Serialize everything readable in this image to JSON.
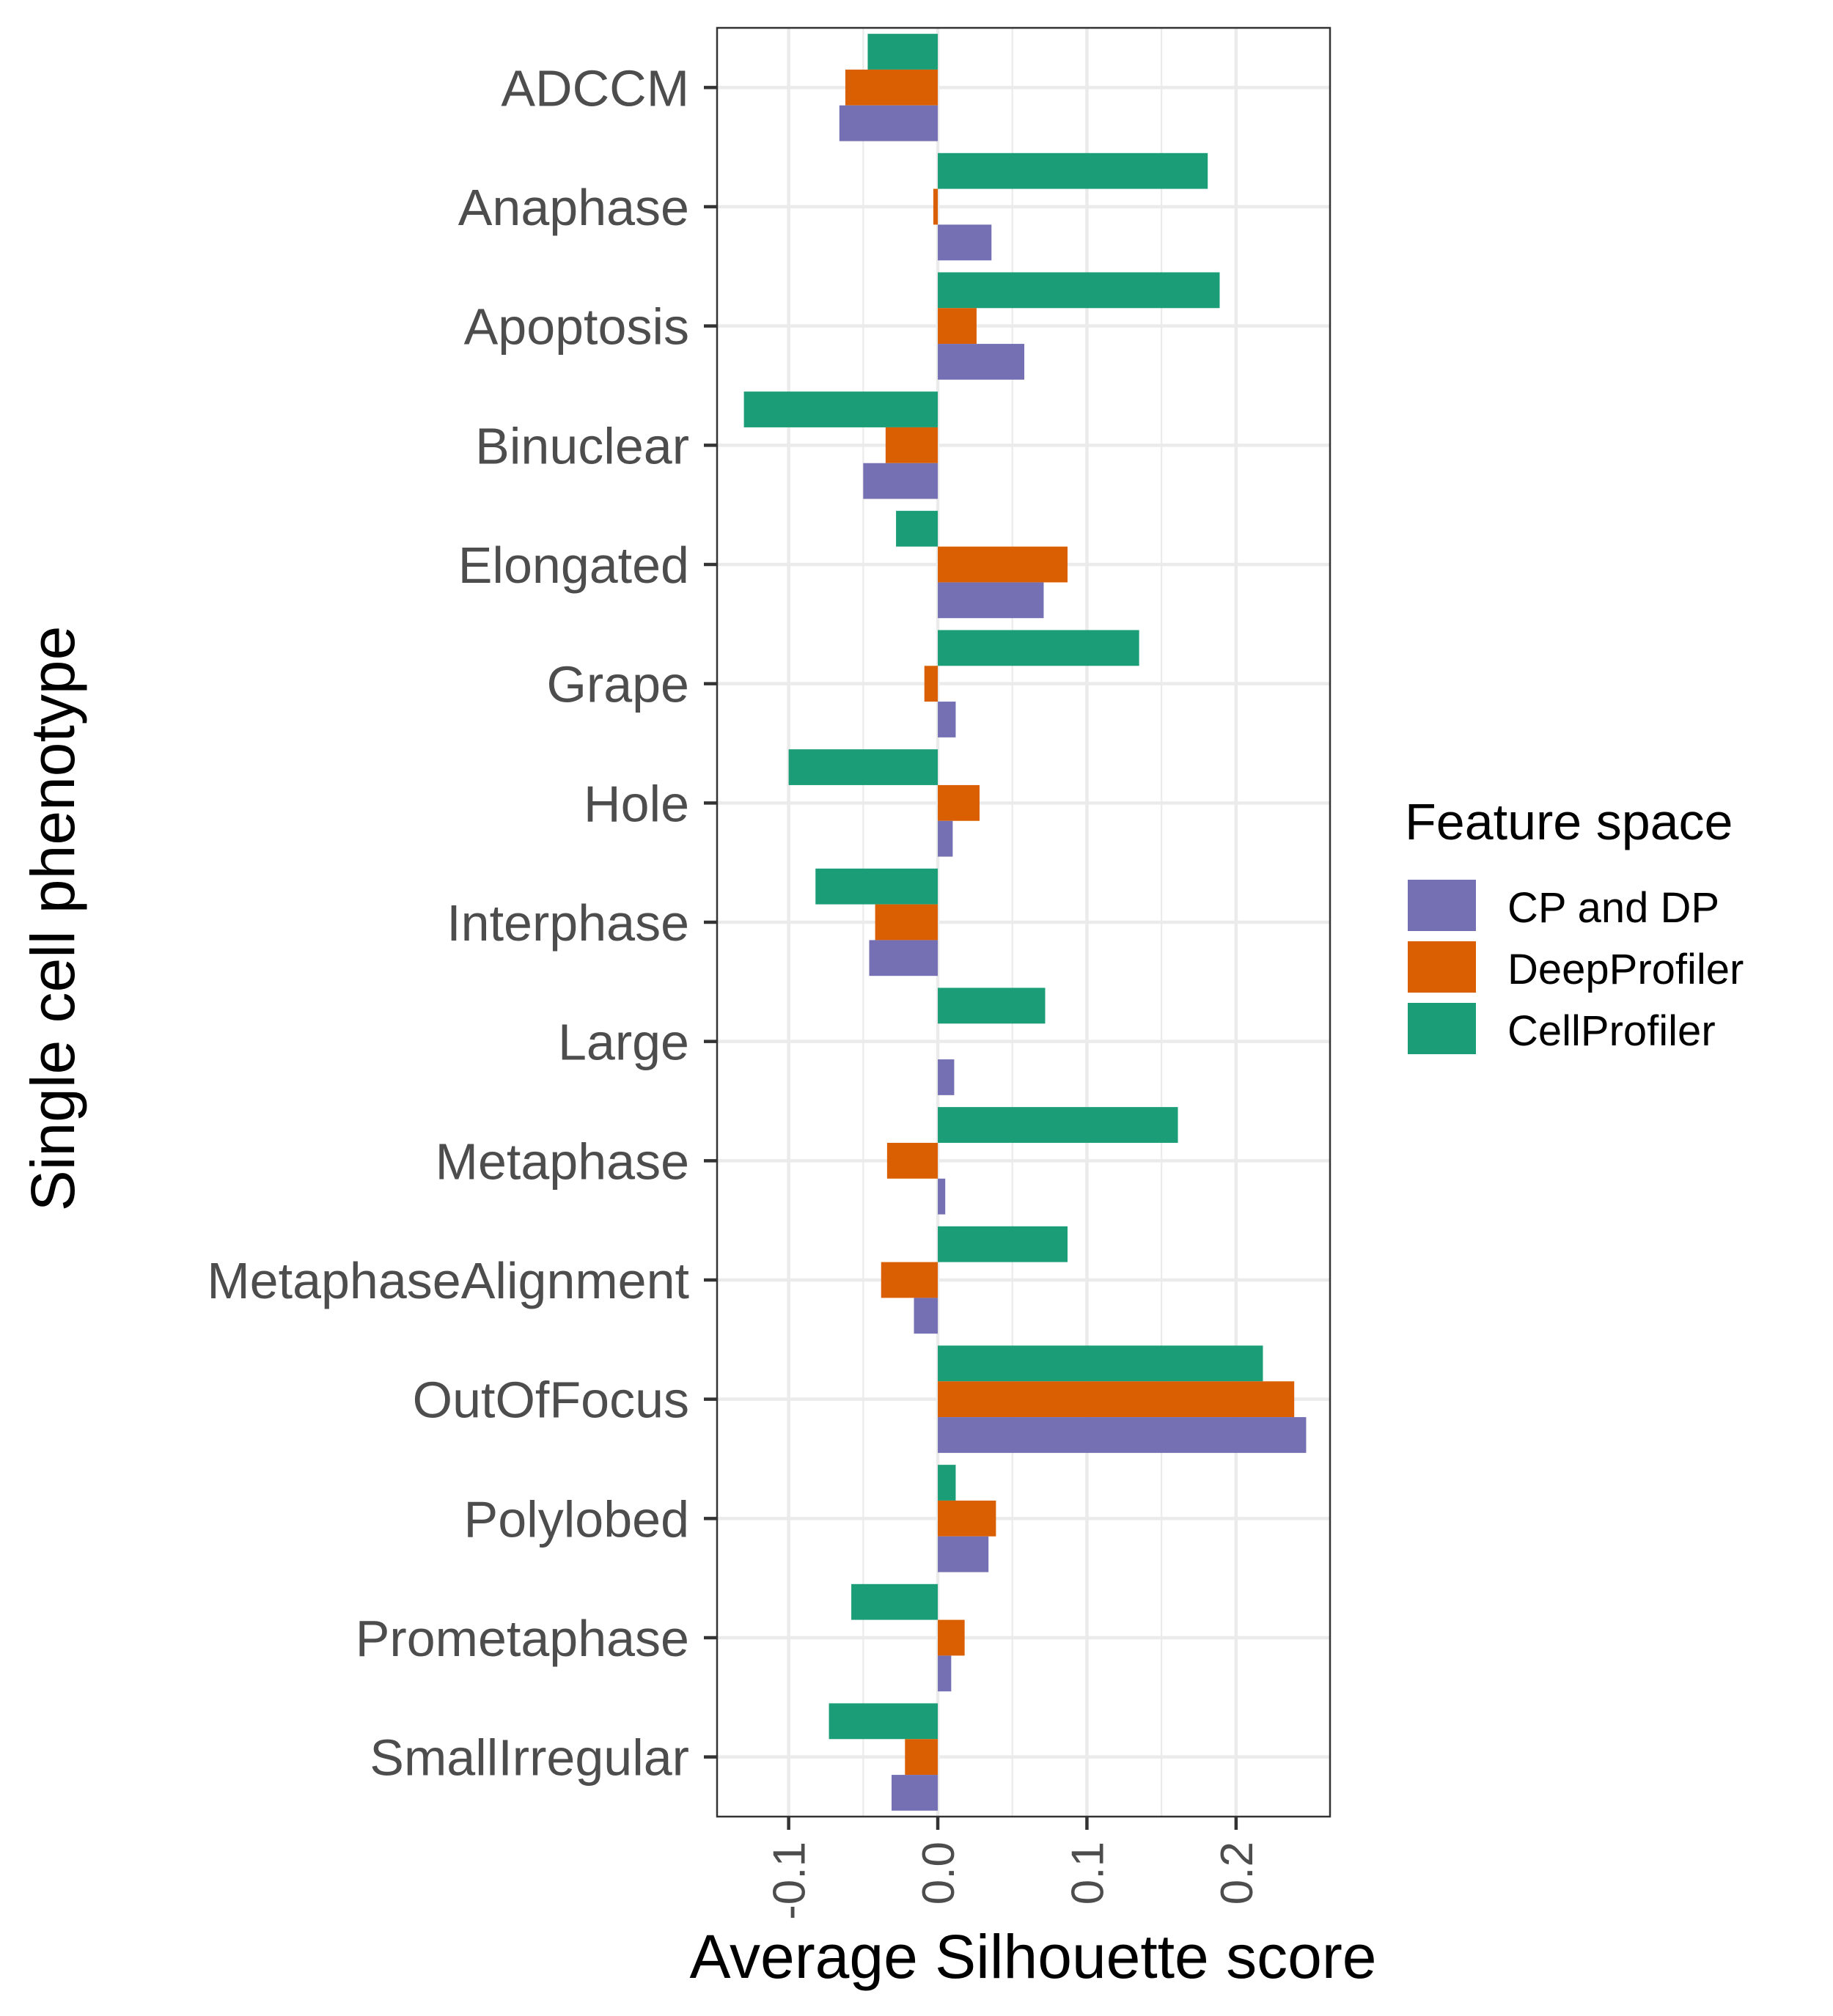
{
  "chart_data": {
    "type": "bar",
    "orientation": "horizontal",
    "xlabel": "Average Silhouette score",
    "ylabel": "Single cell phenotype",
    "xlim": [
      -0.148,
      0.263
    ],
    "xticks": [
      {
        "value": -0.1,
        "label": "-0.1"
      },
      {
        "value": 0.0,
        "label": "0.0"
      },
      {
        "value": 0.1,
        "label": "0.1"
      },
      {
        "value": 0.2,
        "label": "0.2"
      }
    ],
    "grid": true,
    "legend_position": "right",
    "categories": [
      "ADCCM",
      "Anaphase",
      "Apoptosis",
      "Binuclear",
      "Elongated",
      "Grape",
      "Hole",
      "Interphase",
      "Large",
      "Metaphase",
      "MetaphaseAlignment",
      "OutOfFocus",
      "Polylobed",
      "Prometaphase",
      "SmallIrregular"
    ],
    "legend": {
      "title": "Feature space",
      "entries": [
        "CP and DP",
        "DeepProfiler",
        "CellProfiler"
      ]
    },
    "series": [
      {
        "name": "CellProfiler",
        "color": "#1B9E77",
        "values": [
          -0.047,
          0.181,
          0.189,
          -0.13,
          -0.028,
          0.135,
          -0.1,
          -0.082,
          0.072,
          0.161,
          0.087,
          0.218,
          0.012,
          -0.058,
          -0.073
        ]
      },
      {
        "name": "DeepProfiler",
        "color": "#D95F02",
        "values": [
          -0.062,
          -0.003,
          0.026,
          -0.035,
          0.087,
          -0.009,
          0.028,
          -0.042,
          0.0,
          -0.034,
          -0.038,
          0.239,
          0.039,
          0.018,
          -0.022
        ]
      },
      {
        "name": "CP and DP",
        "color": "#7570B3",
        "values": [
          -0.066,
          0.036,
          0.058,
          -0.05,
          0.071,
          0.012,
          0.01,
          -0.046,
          0.011,
          0.005,
          -0.016,
          0.247,
          0.034,
          0.009,
          -0.031
        ]
      }
    ]
  }
}
